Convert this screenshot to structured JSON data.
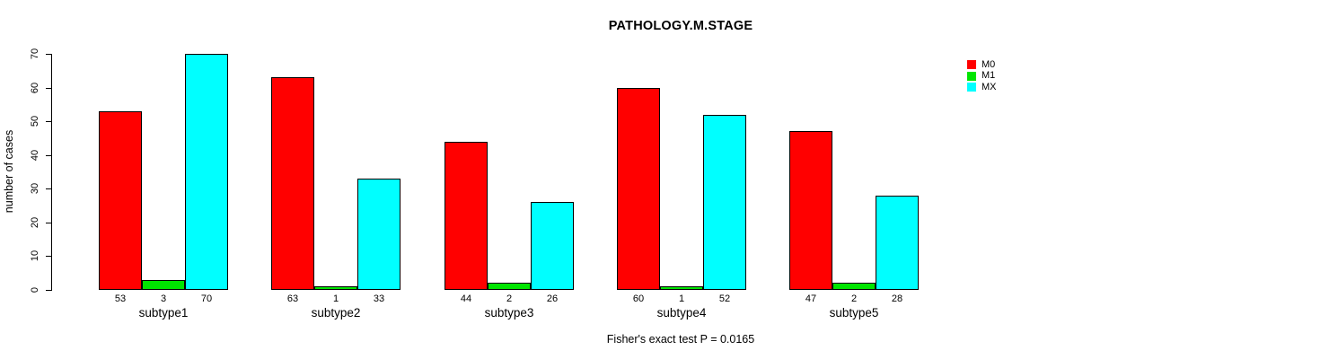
{
  "chart_data": {
    "type": "bar",
    "title": "PATHOLOGY.M.STAGE",
    "ylabel": "number of cases",
    "xlabel": "",
    "footnote": "Fisher's exact test P = 0.0165",
    "categories": [
      "subtype1",
      "subtype2",
      "subtype3",
      "subtype4",
      "subtype5"
    ],
    "series": [
      {
        "name": "M0",
        "color": "#ff0000",
        "values": [
          53,
          63,
          44,
          60,
          47
        ]
      },
      {
        "name": "M1",
        "color": "#00e500",
        "values": [
          3,
          1,
          2,
          1,
          2
        ]
      },
      {
        "name": "MX",
        "color": "#00ffff",
        "values": [
          70,
          33,
          26,
          52,
          28
        ]
      }
    ],
    "ylim": [
      0,
      70
    ],
    "y_ticks": [
      0,
      10,
      20,
      30,
      40,
      50,
      60,
      70
    ],
    "grid": false,
    "legend_position": "top-right",
    "bar_value_labels": true
  }
}
